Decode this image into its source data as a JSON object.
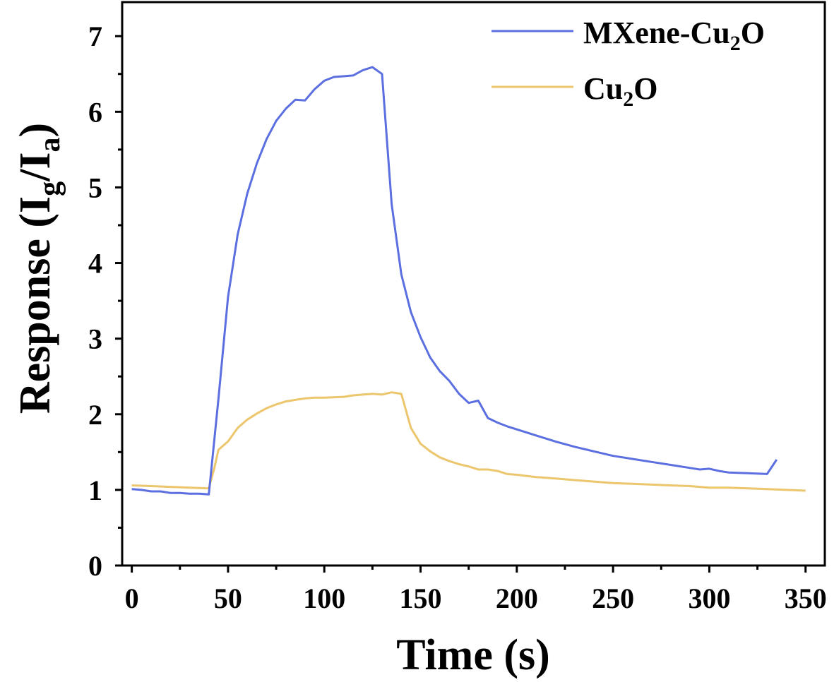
{
  "chart_data": {
    "type": "line",
    "title": "",
    "xlabel": "Time (s)",
    "ylabel": {
      "base": "Response (I",
      "sub1": "g",
      "mid": "/I",
      "sub2": "a",
      "end": ")"
    },
    "xlim": [
      -5,
      360
    ],
    "ylim": [
      0,
      7.45
    ],
    "xticks": [
      0,
      50,
      100,
      150,
      200,
      250,
      300,
      350
    ],
    "yticks": [
      0,
      1,
      2,
      3,
      4,
      5,
      6,
      7
    ],
    "xtick_labels": [
      "0",
      "50",
      "100",
      "150",
      "200",
      "250",
      "300",
      "350"
    ],
    "ytick_labels": [
      "0",
      "1",
      "2",
      "3",
      "4",
      "5",
      "6",
      "7"
    ],
    "grid": false,
    "legend_position": "top-right",
    "series": [
      {
        "name": "MXene-Cu2O",
        "legend": {
          "base": "MXene-Cu",
          "sub": "2",
          "end": "O"
        },
        "color": "#5b6fe0",
        "x": [
          0,
          5,
          10,
          15,
          20,
          25,
          30,
          35,
          40,
          45,
          50,
          55,
          60,
          65,
          70,
          75,
          80,
          85,
          90,
          95,
          100,
          105,
          110,
          115,
          120,
          125,
          130,
          135,
          140,
          145,
          150,
          155,
          160,
          165,
          170,
          175,
          180,
          185,
          190,
          195,
          200,
          210,
          220,
          230,
          240,
          250,
          260,
          270,
          280,
          290,
          295,
          300,
          305,
          310,
          320,
          330,
          335
        ],
        "y": [
          1.01,
          1.0,
          0.98,
          0.98,
          0.96,
          0.96,
          0.95,
          0.95,
          0.94,
          2.2,
          3.55,
          4.38,
          4.92,
          5.32,
          5.64,
          5.88,
          6.04,
          6.16,
          6.15,
          6.3,
          6.41,
          6.46,
          6.47,
          6.48,
          6.55,
          6.59,
          6.5,
          4.78,
          3.85,
          3.35,
          3.02,
          2.75,
          2.57,
          2.44,
          2.27,
          2.15,
          2.18,
          1.95,
          1.89,
          1.84,
          1.8,
          1.72,
          1.64,
          1.57,
          1.51,
          1.45,
          1.41,
          1.37,
          1.33,
          1.29,
          1.27,
          1.28,
          1.25,
          1.23,
          1.22,
          1.21,
          1.4
        ]
      },
      {
        "name": "Cu2O",
        "legend": {
          "base": "Cu",
          "sub": "2",
          "end": "O"
        },
        "color": "#ecc66c",
        "x": [
          0,
          10,
          20,
          30,
          40,
          43,
          45,
          50,
          55,
          60,
          65,
          70,
          75,
          80,
          85,
          90,
          95,
          100,
          110,
          115,
          120,
          125,
          130,
          135,
          140,
          145,
          150,
          155,
          160,
          165,
          170,
          175,
          180,
          185,
          190,
          195,
          200,
          210,
          220,
          230,
          240,
          250,
          260,
          270,
          280,
          290,
          300,
          310,
          320,
          330,
          340,
          350
        ],
        "y": [
          1.06,
          1.05,
          1.04,
          1.03,
          1.02,
          1.3,
          1.53,
          1.64,
          1.82,
          1.93,
          2.01,
          2.08,
          2.13,
          2.17,
          2.19,
          2.21,
          2.22,
          2.22,
          2.23,
          2.25,
          2.26,
          2.27,
          2.26,
          2.29,
          2.27,
          1.82,
          1.61,
          1.51,
          1.43,
          1.38,
          1.34,
          1.31,
          1.27,
          1.27,
          1.25,
          1.21,
          1.2,
          1.17,
          1.15,
          1.13,
          1.11,
          1.09,
          1.08,
          1.07,
          1.06,
          1.05,
          1.03,
          1.03,
          1.02,
          1.01,
          1.0,
          0.99
        ]
      }
    ]
  }
}
